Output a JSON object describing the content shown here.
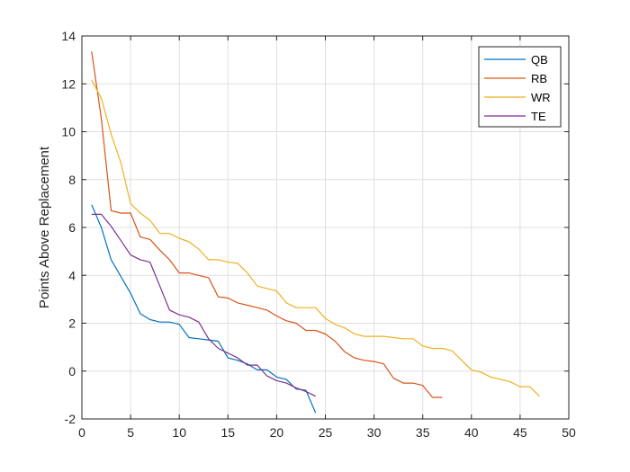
{
  "chart_data": {
    "type": "line",
    "title": "",
    "xlabel": "",
    "ylabel": "Points Above Replacement",
    "xlim": [
      0,
      50
    ],
    "ylim": [
      -2,
      14
    ],
    "xticks": [
      0,
      5,
      10,
      15,
      20,
      25,
      30,
      35,
      40,
      45,
      50
    ],
    "yticks": [
      -2,
      0,
      2,
      4,
      6,
      8,
      10,
      12,
      14
    ],
    "grid": true,
    "legend_position": "top-right",
    "series": [
      {
        "name": "QB",
        "color": "#0072BD",
        "x": [
          1,
          2,
          3,
          4,
          5,
          6,
          7,
          8,
          9,
          10,
          11,
          12,
          13,
          14,
          15,
          16,
          17,
          18,
          19,
          20,
          21,
          22,
          23,
          24
        ],
        "y": [
          6.95,
          6.0,
          4.65,
          3.95,
          3.25,
          2.4,
          2.15,
          2.05,
          2.05,
          1.95,
          1.4,
          1.35,
          1.3,
          1.25,
          0.55,
          0.45,
          0.3,
          0.05,
          0.05,
          -0.25,
          -0.35,
          -0.75,
          -0.8,
          -1.75
        ]
      },
      {
        "name": "RB",
        "color": "#D95319",
        "x": [
          1,
          2,
          3,
          4,
          5,
          6,
          7,
          8,
          9,
          10,
          11,
          12,
          13,
          14,
          15,
          16,
          17,
          18,
          19,
          20,
          21,
          22,
          23,
          24,
          25,
          26,
          27,
          28,
          29,
          30,
          31,
          32,
          33,
          34,
          35,
          36,
          37
        ],
        "y": [
          13.35,
          10.55,
          6.7,
          6.6,
          6.6,
          5.6,
          5.5,
          5.05,
          4.65,
          4.1,
          4.1,
          4.0,
          3.9,
          3.1,
          3.05,
          2.85,
          2.75,
          2.65,
          2.55,
          2.3,
          2.1,
          2.0,
          1.7,
          1.7,
          1.55,
          1.25,
          0.8,
          0.55,
          0.45,
          0.4,
          0.3,
          -0.3,
          -0.5,
          -0.5,
          -0.6,
          -1.1,
          -1.1
        ]
      },
      {
        "name": "WR",
        "color": "#EDB120",
        "x": [
          1,
          2,
          3,
          4,
          5,
          6,
          7,
          8,
          9,
          10,
          11,
          12,
          13,
          14,
          15,
          16,
          17,
          18,
          19,
          20,
          21,
          22,
          23,
          24,
          25,
          26,
          27,
          28,
          29,
          30,
          31,
          32,
          33,
          34,
          35,
          36,
          37,
          38,
          39,
          40,
          41,
          42,
          43,
          44,
          45,
          46,
          47
        ],
        "y": [
          12.15,
          11.4,
          9.9,
          8.7,
          7.0,
          6.6,
          6.3,
          5.75,
          5.75,
          5.55,
          5.4,
          5.1,
          4.65,
          4.65,
          4.55,
          4.5,
          4.1,
          3.55,
          3.45,
          3.35,
          2.85,
          2.65,
          2.65,
          2.65,
          2.2,
          1.95,
          1.8,
          1.55,
          1.45,
          1.45,
          1.45,
          1.4,
          1.35,
          1.35,
          1.05,
          0.95,
          0.95,
          0.85,
          0.45,
          0.05,
          -0.05,
          -0.25,
          -0.35,
          -0.45,
          -0.65,
          -0.65,
          -1.05
        ]
      },
      {
        "name": "TE",
        "color": "#7E2F8E",
        "x": [
          1,
          2,
          3,
          4,
          5,
          6,
          7,
          8,
          9,
          10,
          11,
          12,
          13,
          14,
          15,
          16,
          17,
          18,
          19,
          20,
          21,
          22,
          23,
          24
        ],
        "y": [
          6.55,
          6.55,
          6.05,
          5.45,
          4.85,
          4.65,
          4.55,
          3.55,
          2.55,
          2.35,
          2.25,
          2.05,
          1.35,
          0.95,
          0.75,
          0.55,
          0.25,
          0.25,
          -0.2,
          -0.4,
          -0.5,
          -0.7,
          -0.85,
          -1.05
        ]
      }
    ]
  }
}
